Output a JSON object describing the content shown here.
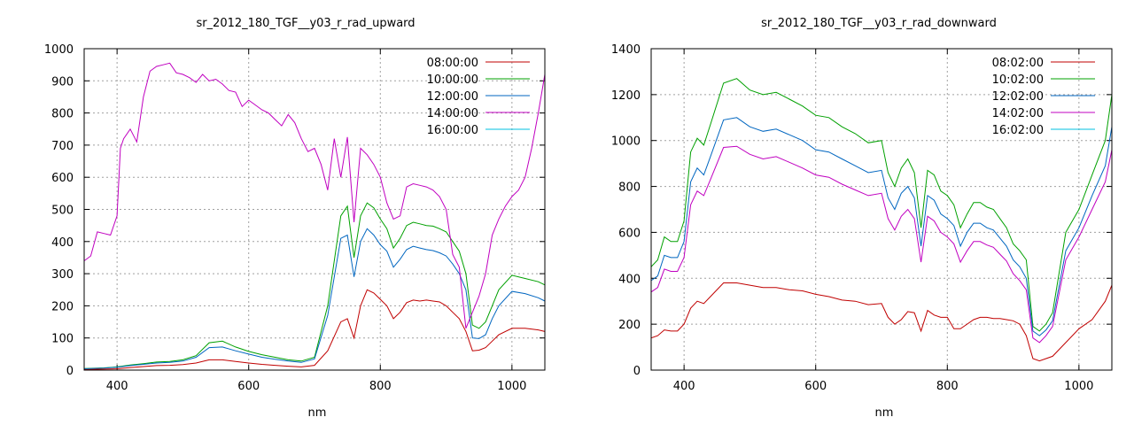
{
  "chart_data": [
    {
      "type": "line",
      "title": "sr_2012_180_TGF__y03_r_rad_upward",
      "xlabel": "nm",
      "ylabel": "",
      "xlim": [
        350,
        1050
      ],
      "ylim": [
        0,
        1000
      ],
      "xticks": [
        400,
        600,
        800,
        1000
      ],
      "yticks": [
        0,
        100,
        200,
        300,
        400,
        500,
        600,
        700,
        800,
        900,
        1000
      ],
      "grid": true,
      "legend_position": "top-right",
      "series": [
        {
          "name": "08:00:00",
          "color": "#c00000",
          "x": [
            350,
            380,
            400,
            420,
            440,
            460,
            480,
            500,
            520,
            540,
            560,
            580,
            600,
            620,
            640,
            660,
            680,
            700,
            720,
            740,
            750,
            760,
            770,
            780,
            790,
            800,
            810,
            820,
            830,
            840,
            850,
            860,
            870,
            880,
            890,
            900,
            910,
            920,
            930,
            940,
            950,
            960,
            970,
            980,
            1000,
            1020,
            1040,
            1050
          ],
          "y": [
            2,
            3,
            4,
            8,
            11,
            14,
            15,
            17,
            22,
            32,
            32,
            27,
            22,
            18,
            15,
            12,
            10,
            15,
            60,
            150,
            160,
            100,
            200,
            250,
            240,
            220,
            200,
            160,
            180,
            210,
            218,
            215,
            218,
            215,
            212,
            200,
            180,
            160,
            120,
            60,
            62,
            70,
            90,
            110,
            130,
            130,
            125,
            120
          ]
        },
        {
          "name": "10:00:00",
          "color": "#00a000",
          "x": [
            350,
            380,
            400,
            420,
            440,
            460,
            480,
            500,
            520,
            540,
            560,
            580,
            600,
            620,
            640,
            660,
            680,
            700,
            720,
            740,
            750,
            760,
            770,
            780,
            790,
            800,
            810,
            820,
            830,
            840,
            850,
            860,
            870,
            880,
            890,
            900,
            910,
            920,
            930,
            940,
            950,
            960,
            970,
            980,
            1000,
            1020,
            1040,
            1050
          ],
          "y": [
            5,
            7,
            10,
            16,
            20,
            25,
            27,
            32,
            45,
            85,
            90,
            72,
            58,
            48,
            40,
            32,
            28,
            40,
            200,
            480,
            510,
            350,
            480,
            520,
            505,
            470,
            440,
            380,
            410,
            450,
            460,
            455,
            450,
            448,
            440,
            430,
            400,
            370,
            300,
            140,
            130,
            150,
            200,
            250,
            295,
            285,
            275,
            265
          ]
        },
        {
          "name": "12:00:00",
          "color": "#0066c0",
          "x": [
            350,
            380,
            400,
            420,
            440,
            460,
            480,
            500,
            520,
            540,
            560,
            580,
            600,
            620,
            640,
            660,
            680,
            700,
            720,
            740,
            750,
            760,
            770,
            780,
            790,
            800,
            810,
            820,
            830,
            840,
            850,
            860,
            870,
            880,
            890,
            900,
            910,
            920,
            930,
            940,
            950,
            960,
            970,
            980,
            1000,
            1020,
            1040,
            1050
          ],
          "y": [
            4,
            6,
            9,
            14,
            18,
            22,
            24,
            28,
            40,
            70,
            72,
            60,
            50,
            40,
            34,
            28,
            24,
            35,
            170,
            410,
            420,
            290,
            400,
            440,
            420,
            390,
            370,
            320,
            345,
            375,
            385,
            380,
            375,
            372,
            365,
            355,
            330,
            300,
            250,
            100,
            98,
            110,
            160,
            200,
            245,
            238,
            225,
            215
          ]
        },
        {
          "name": "14:00:00",
          "color": "#c000c0",
          "x": [
            350,
            360,
            370,
            380,
            390,
            400,
            405,
            410,
            420,
            430,
            440,
            450,
            460,
            470,
            480,
            490,
            500,
            510,
            520,
            530,
            540,
            550,
            560,
            570,
            580,
            590,
            600,
            610,
            620,
            630,
            640,
            650,
            660,
            670,
            680,
            690,
            700,
            710,
            720,
            730,
            740,
            750,
            760,
            770,
            780,
            790,
            800,
            810,
            820,
            830,
            840,
            850,
            860,
            870,
            880,
            890,
            900,
            910,
            920,
            930,
            940,
            950,
            960,
            970,
            980,
            990,
            1000,
            1010,
            1020,
            1030,
            1040,
            1050
          ],
          "y": [
            340,
            355,
            430,
            425,
            420,
            480,
            690,
            720,
            750,
            710,
            850,
            930,
            945,
            950,
            955,
            925,
            920,
            910,
            895,
            920,
            900,
            905,
            890,
            870,
            865,
            820,
            840,
            825,
            810,
            800,
            780,
            760,
            795,
            770,
            720,
            680,
            690,
            640,
            560,
            720,
            600,
            725,
            460,
            690,
            670,
            640,
            600,
            520,
            470,
            480,
            570,
            580,
            575,
            570,
            560,
            540,
            500,
            360,
            320,
            130,
            180,
            230,
            300,
            420,
            470,
            510,
            540,
            560,
            600,
            690,
            800,
            920
          ]
        },
        {
          "name": "16:00:00",
          "color": "#00c0e0",
          "x": [
            350,
            400,
            500,
            600,
            700,
            800,
            900,
            1000,
            1050
          ],
          "y": [
            0,
            0,
            0,
            0,
            0,
            0,
            0,
            0,
            0
          ]
        }
      ]
    },
    {
      "type": "line",
      "title": "sr_2012_180_TGF__y03_r_rad_downward",
      "xlabel": "nm",
      "ylabel": "",
      "xlim": [
        350,
        1050
      ],
      "ylim": [
        0,
        1400
      ],
      "xticks": [
        400,
        600,
        800,
        1000
      ],
      "yticks": [
        0,
        200,
        400,
        600,
        800,
        1000,
        1200,
        1400
      ],
      "grid": true,
      "legend_position": "top-right",
      "series": [
        {
          "name": "08:02:00",
          "color": "#c00000",
          "x": [
            350,
            360,
            370,
            380,
            390,
            400,
            410,
            420,
            430,
            440,
            460,
            480,
            500,
            520,
            540,
            560,
            580,
            600,
            620,
            640,
            660,
            680,
            700,
            710,
            720,
            730,
            740,
            750,
            760,
            770,
            780,
            790,
            800,
            810,
            820,
            830,
            840,
            850,
            860,
            870,
            880,
            890,
            900,
            910,
            920,
            930,
            940,
            950,
            960,
            980,
            1000,
            1020,
            1040,
            1050
          ],
          "y": [
            140,
            150,
            175,
            170,
            170,
            200,
            270,
            300,
            290,
            320,
            380,
            380,
            370,
            360,
            360,
            350,
            345,
            330,
            320,
            305,
            300,
            285,
            290,
            230,
            200,
            220,
            255,
            250,
            170,
            260,
            240,
            230,
            230,
            180,
            180,
            200,
            220,
            230,
            230,
            225,
            225,
            220,
            215,
            200,
            150,
            50,
            40,
            50,
            60,
            120,
            180,
            220,
            300,
            370
          ]
        },
        {
          "name": "10:02:00",
          "color": "#00a000",
          "x": [
            350,
            360,
            370,
            380,
            390,
            400,
            410,
            420,
            430,
            440,
            460,
            480,
            500,
            520,
            540,
            560,
            580,
            600,
            620,
            640,
            660,
            680,
            700,
            710,
            720,
            730,
            740,
            750,
            760,
            770,
            780,
            790,
            800,
            810,
            820,
            830,
            840,
            850,
            860,
            870,
            880,
            890,
            900,
            910,
            920,
            930,
            940,
            950,
            960,
            980,
            1000,
            1020,
            1040,
            1050
          ],
          "y": [
            450,
            480,
            580,
            560,
            560,
            650,
            950,
            1010,
            980,
            1070,
            1250,
            1270,
            1220,
            1200,
            1210,
            1180,
            1150,
            1110,
            1100,
            1060,
            1030,
            990,
            1000,
            860,
            800,
            880,
            920,
            860,
            620,
            870,
            850,
            780,
            760,
            720,
            620,
            680,
            730,
            730,
            710,
            700,
            660,
            620,
            550,
            520,
            480,
            190,
            170,
            200,
            250,
            600,
            700,
            850,
            1000,
            1200
          ]
        },
        {
          "name": "12:02:00",
          "color": "#0066c0",
          "x": [
            350,
            360,
            370,
            380,
            390,
            400,
            410,
            420,
            430,
            440,
            460,
            480,
            500,
            520,
            540,
            560,
            580,
            600,
            620,
            640,
            660,
            680,
            700,
            710,
            720,
            730,
            740,
            750,
            760,
            770,
            780,
            790,
            800,
            810,
            820,
            830,
            840,
            850,
            860,
            870,
            880,
            890,
            900,
            910,
            920,
            930,
            940,
            950,
            960,
            980,
            1000,
            1020,
            1040,
            1050
          ],
          "y": [
            390,
            410,
            500,
            490,
            490,
            560,
            820,
            880,
            850,
            930,
            1090,
            1100,
            1060,
            1040,
            1050,
            1025,
            1000,
            960,
            950,
            920,
            890,
            860,
            870,
            750,
            700,
            770,
            800,
            750,
            540,
            760,
            740,
            680,
            660,
            630,
            540,
            600,
            640,
            640,
            620,
            610,
            575,
            540,
            480,
            450,
            400,
            170,
            150,
            175,
            215,
            520,
            620,
            760,
            890,
            1060
          ]
        },
        {
          "name": "14:02:00",
          "color": "#c000c0",
          "x": [
            350,
            360,
            370,
            380,
            390,
            400,
            410,
            420,
            430,
            440,
            460,
            480,
            500,
            520,
            540,
            560,
            580,
            600,
            620,
            640,
            660,
            680,
            700,
            710,
            720,
            730,
            740,
            750,
            760,
            770,
            780,
            790,
            800,
            810,
            820,
            830,
            840,
            850,
            860,
            870,
            880,
            890,
            900,
            910,
            920,
            930,
            940,
            950,
            960,
            980,
            1000,
            1020,
            1040,
            1050
          ],
          "y": [
            340,
            360,
            440,
            430,
            430,
            490,
            720,
            780,
            760,
            830,
            970,
            975,
            940,
            920,
            930,
            905,
            880,
            850,
            840,
            810,
            785,
            760,
            770,
            660,
            610,
            670,
            700,
            660,
            470,
            670,
            650,
            600,
            580,
            550,
            470,
            520,
            560,
            560,
            545,
            535,
            505,
            475,
            420,
            390,
            350,
            140,
            120,
            150,
            190,
            480,
            580,
            700,
            820,
            960
          ]
        },
        {
          "name": "16:02:00",
          "color": "#00c0e0",
          "x": [
            350,
            400,
            500,
            600,
            700,
            800,
            900,
            1000,
            1050
          ],
          "y": [
            0,
            0,
            0,
            0,
            0,
            0,
            0,
            0,
            0
          ]
        }
      ]
    }
  ]
}
